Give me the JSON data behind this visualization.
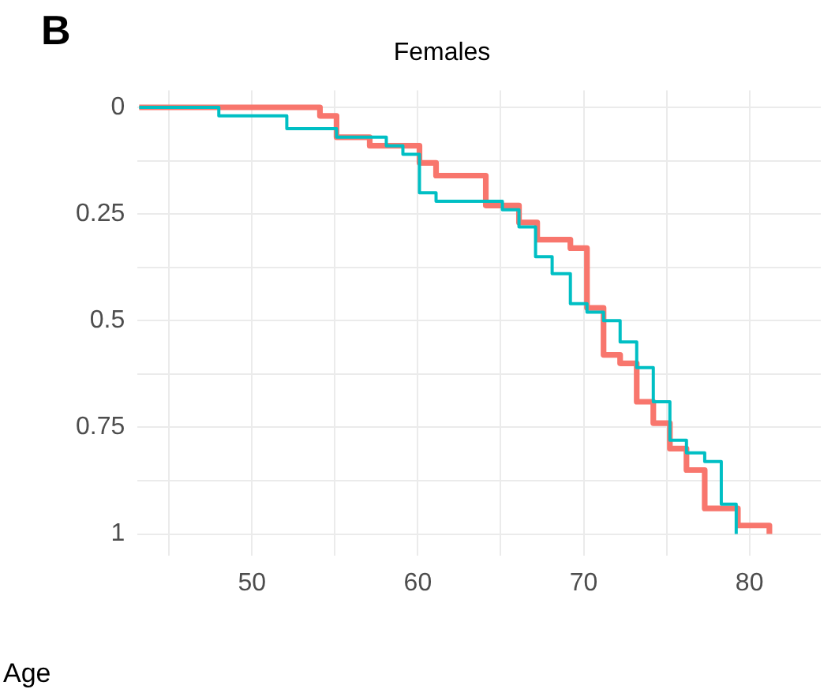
{
  "chart_data": {
    "type": "step",
    "title": "Females",
    "xlabel": "Age",
    "annotations": [
      "B"
    ],
    "series": [
      {
        "color": "#f8766d",
        "x": [
          43.2,
          54.1,
          55.1,
          57.1,
          60.1,
          61.1,
          64.1,
          66.1,
          67.2,
          69.2,
          70.2,
          71.2,
          72.2,
          73.2,
          74.2,
          75.2,
          76.2,
          77.3,
          79.3,
          81.2
        ],
        "values": [
          0,
          0.02,
          0.07,
          0.09,
          0.13,
          0.16,
          0.23,
          0.27,
          0.31,
          0.33,
          0.47,
          0.58,
          0.6,
          0.69,
          0.74,
          0.8,
          0.85,
          0.94,
          0.98,
          1
        ]
      },
      {
        "color": "#00bfc4",
        "x": [
          43.2,
          48,
          52.1,
          55.1,
          58.1,
          59.1,
          60.1,
          61.1,
          65.1,
          66.1,
          67.1,
          68.1,
          69.2,
          70.2,
          71.2,
          72.2,
          73.2,
          74.2,
          75.2,
          76.2,
          77.3,
          78.3,
          79.2
        ],
        "values": [
          0,
          0.02,
          0.05,
          0.07,
          0.09,
          0.11,
          0.2,
          0.22,
          0.24,
          0.28,
          0.35,
          0.39,
          0.46,
          0.48,
          0.5,
          0.55,
          0.61,
          0.69,
          0.78,
          0.81,
          0.83,
          0.93,
          1
        ]
      }
    ],
    "xlim": [
      43.1,
      84.3
    ],
    "ylim": [
      1.05,
      -0.04
    ],
    "xticks": [
      {
        "value": 45,
        "label": null
      },
      50,
      {
        "value": 55,
        "label": null
      },
      60,
      {
        "value": 65,
        "label": null
      },
      70,
      {
        "value": 75,
        "label": null
      },
      80
    ],
    "yticks": [
      0,
      {
        "value": 0.125,
        "label": null
      },
      0.25,
      {
        "value": 0.375,
        "label": null
      },
      0.5,
      {
        "value": 0.625,
        "label": null
      },
      0.75,
      {
        "value": 0.875,
        "label": null
      },
      1
    ],
    "grid": true,
    "legend": false,
    "line_style": "solid",
    "marker": "none"
  }
}
